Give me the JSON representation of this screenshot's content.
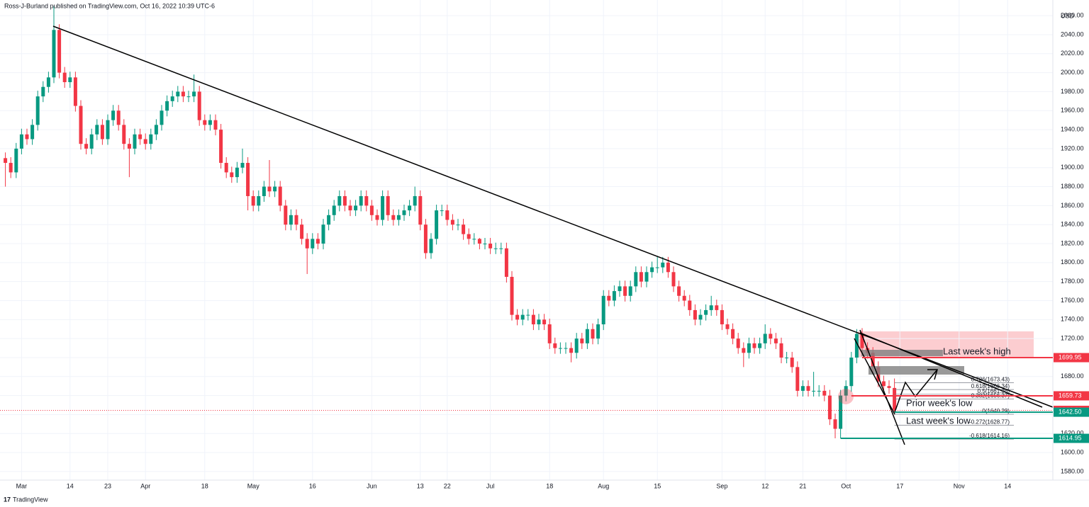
{
  "header": "Ross-J-Burland published on TradingView.com, Oct 16, 2022 10:39 UTC-6",
  "footer": "TradingView",
  "chart_data": {
    "type": "candlestick",
    "currency": "USD",
    "up_color": "#089981",
    "down_color": "#f23645",
    "open": [
      1910,
      1905,
      1895,
      1920,
      1935,
      1930,
      1945,
      1975,
      1985,
      1995,
      2045,
      2000,
      1990,
      1995,
      1965,
      1925,
      1920,
      1935,
      1945,
      1930,
      1950,
      1960,
      1945,
      1925,
      1920,
      1935,
      1930,
      1925,
      1935,
      1945,
      1960,
      1970,
      1975,
      1980,
      1975,
      1975,
      1980,
      1950,
      1945,
      1950,
      1940,
      1905,
      1895,
      1890,
      1900,
      1905,
      1870,
      1860,
      1870,
      1880,
      1875,
      1880,
      1860,
      1840,
      1850,
      1840,
      1825,
      1815,
      1825,
      1820,
      1840,
      1850,
      1860,
      1870,
      1860,
      1855,
      1860,
      1870,
      1860,
      1850,
      1845,
      1870,
      1850,
      1845,
      1850,
      1855,
      1860,
      1870,
      1840,
      1810,
      1825,
      1855,
      1855,
      1845,
      1840,
      1840,
      1830,
      1825,
      1825,
      1820,
      1820,
      1815,
      1815,
      1815,
      1785,
      1745,
      1740,
      1745,
      1745,
      1735,
      1740,
      1735,
      1715,
      1710,
      1710,
      1710,
      1705,
      1720,
      1715,
      1730,
      1720,
      1735,
      1765,
      1760,
      1770,
      1775,
      1765,
      1775,
      1790,
      1780,
      1790,
      1795,
      1795,
      1800,
      1790,
      1775,
      1765,
      1760,
      1750,
      1740,
      1745,
      1750,
      1755,
      1750,
      1735,
      1730,
      1720,
      1710,
      1705,
      1715,
      1710,
      1715,
      1725,
      1720,
      1715,
      1700,
      1700,
      1690,
      1665,
      1670,
      1665,
      1665,
      1665,
      1660,
      1635,
      1625,
      1660,
      1670,
      1700,
      1725,
      1710,
      1705,
      1690,
      1675,
      1670,
      1668
    ],
    "high": [
      1916,
      1911,
      1926,
      1941,
      1941,
      1951,
      1981,
      1991,
      2001,
      2070,
      2051,
      2006,
      2001,
      2001,
      1971,
      1931,
      1941,
      1951,
      1951,
      1956,
      1966,
      1966,
      1951,
      1931,
      1941,
      1941,
      1936,
      1941,
      1951,
      1966,
      1976,
      1981,
      1986,
      1986,
      1981,
      1998,
      1986,
      1956,
      1956,
      1956,
      1946,
      1911,
      1901,
      1906,
      1920,
      1911,
      1876,
      1876,
      1886,
      1908,
      1886,
      1886,
      1866,
      1856,
      1856,
      1846,
      1831,
      1831,
      1831,
      1846,
      1856,
      1866,
      1876,
      1876,
      1866,
      1866,
      1876,
      1876,
      1866,
      1856,
      1876,
      1876,
      1856,
      1856,
      1861,
      1866,
      1880,
      1876,
      1846,
      1831,
      1861,
      1861,
      1861,
      1851,
      1846,
      1846,
      1836,
      1831,
      1826,
      1826,
      1826,
      1821,
      1821,
      1821,
      1791,
      1751,
      1751,
      1751,
      1751,
      1746,
      1746,
      1741,
      1721,
      1716,
      1716,
      1716,
      1726,
      1726,
      1736,
      1736,
      1741,
      1771,
      1771,
      1776,
      1781,
      1781,
      1781,
      1796,
      1796,
      1796,
      1801,
      1807,
      1806,
      1806,
      1796,
      1781,
      1771,
      1766,
      1756,
      1751,
      1756,
      1765,
      1761,
      1756,
      1741,
      1736,
      1726,
      1716,
      1721,
      1721,
      1721,
      1735,
      1731,
      1726,
      1721,
      1706,
      1706,
      1696,
      1676,
      1676,
      1685,
      1671,
      1671,
      1666,
      1641,
      1666,
      1676,
      1706,
      1730,
      1731,
      1716,
      1711,
      1696,
      1681,
      1676,
      1678
    ],
    "low": [
      1880,
      1889,
      1889,
      1914,
      1924,
      1924,
      1939,
      1969,
      1979,
      1989,
      1994,
      1984,
      1984,
      1959,
      1919,
      1914,
      1914,
      1929,
      1924,
      1924,
      1944,
      1939,
      1919,
      1890,
      1914,
      1924,
      1919,
      1919,
      1929,
      1939,
      1954,
      1964,
      1969,
      1969,
      1969,
      1969,
      1944,
      1939,
      1939,
      1934,
      1899,
      1889,
      1884,
      1884,
      1894,
      1855,
      1854,
      1854,
      1864,
      1869,
      1869,
      1854,
      1834,
      1834,
      1834,
      1819,
      1788,
      1809,
      1814,
      1814,
      1834,
      1844,
      1854,
      1854,
      1849,
      1849,
      1854,
      1854,
      1844,
      1839,
      1839,
      1844,
      1839,
      1839,
      1844,
      1849,
      1854,
      1834,
      1804,
      1804,
      1819,
      1849,
      1839,
      1834,
      1834,
      1824,
      1819,
      1819,
      1814,
      1814,
      1809,
      1809,
      1809,
      1779,
      1739,
      1734,
      1734,
      1739,
      1729,
      1729,
      1729,
      1709,
      1704,
      1704,
      1704,
      1695,
      1699,
      1709,
      1709,
      1714,
      1714,
      1729,
      1754,
      1754,
      1764,
      1759,
      1759,
      1769,
      1774,
      1774,
      1784,
      1789,
      1789,
      1784,
      1769,
      1759,
      1754,
      1744,
      1734,
      1734,
      1739,
      1744,
      1744,
      1729,
      1724,
      1714,
      1704,
      1690,
      1699,
      1704,
      1704,
      1709,
      1714,
      1709,
      1694,
      1694,
      1684,
      1659,
      1659,
      1659,
      1659,
      1659,
      1654,
      1629,
      1615,
      1615,
      1654,
      1664,
      1694,
      1704,
      1699,
      1684,
      1669,
      1664,
      1662,
      1640
    ],
    "close": [
      1905,
      1895,
      1920,
      1935,
      1930,
      1945,
      1975,
      1985,
      1995,
      2045,
      2000,
      1990,
      1995,
      1965,
      1925,
      1920,
      1935,
      1945,
      1930,
      1950,
      1960,
      1945,
      1925,
      1920,
      1935,
      1930,
      1925,
      1935,
      1945,
      1960,
      1970,
      1975,
      1980,
      1975,
      1975,
      1980,
      1950,
      1945,
      1950,
      1940,
      1905,
      1895,
      1890,
      1900,
      1905,
      1870,
      1860,
      1870,
      1880,
      1875,
      1880,
      1860,
      1840,
      1850,
      1840,
      1825,
      1815,
      1825,
      1820,
      1840,
      1850,
      1860,
      1870,
      1860,
      1855,
      1860,
      1870,
      1860,
      1850,
      1845,
      1870,
      1850,
      1845,
      1850,
      1855,
      1860,
      1870,
      1840,
      1810,
      1825,
      1855,
      1855,
      1845,
      1840,
      1840,
      1830,
      1825,
      1825,
      1820,
      1820,
      1815,
      1815,
      1815,
      1785,
      1745,
      1740,
      1745,
      1745,
      1735,
      1740,
      1735,
      1715,
      1710,
      1710,
      1710,
      1705,
      1720,
      1715,
      1730,
      1720,
      1735,
      1765,
      1760,
      1770,
      1775,
      1765,
      1775,
      1790,
      1780,
      1790,
      1795,
      1795,
      1800,
      1790,
      1775,
      1765,
      1760,
      1750,
      1740,
      1745,
      1750,
      1755,
      1750,
      1735,
      1730,
      1720,
      1710,
      1705,
      1715,
      1710,
      1715,
      1725,
      1720,
      1715,
      1700,
      1700,
      1690,
      1665,
      1670,
      1665,
      1665,
      1665,
      1660,
      1635,
      1625,
      1660,
      1670,
      1700,
      1725,
      1710,
      1705,
      1690,
      1675,
      1670,
      1668,
      1645
    ],
    "xlim": [
      -1,
      194
    ],
    "ylim": [
      1571,
      2076.5
    ],
    "xticks": [
      {
        "value": 3,
        "label": "Mar"
      },
      {
        "value": 12,
        "label": "14"
      },
      {
        "value": 19,
        "label": "23"
      },
      {
        "value": 26,
        "label": "Apr"
      },
      {
        "value": 37,
        "label": "18"
      },
      {
        "value": 46,
        "label": "May"
      },
      {
        "value": 57,
        "label": "16"
      },
      {
        "value": 68,
        "label": "Jun"
      },
      {
        "value": 77,
        "label": "13"
      },
      {
        "value": 82,
        "label": "22"
      },
      {
        "value": 90,
        "label": "Jul"
      },
      {
        "value": 101,
        "label": "18"
      },
      {
        "value": 111,
        "label": "Aug"
      },
      {
        "value": 121,
        "label": "15"
      },
      {
        "value": 133,
        "label": "Sep"
      },
      {
        "value": 141,
        "label": "12"
      },
      {
        "value": 148,
        "label": "21"
      },
      {
        "value": 156,
        "label": "Oct"
      },
      {
        "value": 166,
        "label": "17"
      },
      {
        "value": 177,
        "label": "Nov"
      },
      {
        "value": 186,
        "label": "14"
      }
    ],
    "yticks": [
      {
        "value": 1580,
        "label": "1580.00"
      },
      {
        "value": 1600,
        "label": "1600.00"
      },
      {
        "value": 1620,
        "label": "1620.00"
      },
      {
        "value": 1640,
        "label": "1640.00"
      },
      {
        "value": 1660,
        "label": "1660.00"
      },
      {
        "value": 1680,
        "label": "1680.00"
      },
      {
        "value": 1700,
        "label": "1700.00"
      },
      {
        "value": 1720,
        "label": "1720.00"
      },
      {
        "value": 1740,
        "label": "1740.00"
      },
      {
        "value": 1760,
        "label": "1760.00"
      },
      {
        "value": 1780,
        "label": "1780.00"
      },
      {
        "value": 1800,
        "label": "1800.00"
      },
      {
        "value": 1820,
        "label": "1820.00"
      },
      {
        "value": 1840,
        "label": "1840.00"
      },
      {
        "value": 1860,
        "label": "1860.00"
      },
      {
        "value": 1880,
        "label": "1880.00"
      },
      {
        "value": 1900,
        "label": "1900.00"
      },
      {
        "value": 1920,
        "label": "1920.00"
      },
      {
        "value": 1940,
        "label": "1940.00"
      },
      {
        "value": 1960,
        "label": "1960.00"
      },
      {
        "value": 1980,
        "label": "1980.00"
      },
      {
        "value": 2000,
        "label": "2000.00"
      },
      {
        "value": 2020,
        "label": "2020.00"
      },
      {
        "value": 2040,
        "label": "2040.00"
      },
      {
        "value": 2060,
        "label": "2060.00"
      }
    ],
    "price_lines": [
      {
        "value": 1699.95,
        "label": "1699.95",
        "color": "#f23645",
        "from": 159
      },
      {
        "value": 1659.73,
        "label": "1659.73",
        "color": "#f23645",
        "from": 157
      },
      {
        "value": 1644.44,
        "label": "1644.44",
        "color": "#f23645",
        "from": -1,
        "dotted": true
      },
      {
        "value": 1642.5,
        "label": "1642.50",
        "color": "#089981",
        "from": 165
      },
      {
        "value": 1614.95,
        "label": "1614.95",
        "color": "#089981",
        "from": 155
      }
    ],
    "fib_levels": [
      {
        "value": 1673.43,
        "label": "0.786(1673.43)"
      },
      {
        "value": 1666.34,
        "label": "0.618(1666.34)"
      },
      {
        "value": 1661.36,
        "label": "0.5(1661.36)"
      },
      {
        "value": 1656.37,
        "label": "0.382(1656.37)"
      },
      {
        "value": 1640.29,
        "label": "0(1640.29)"
      },
      {
        "value": 1628.77,
        "label": "-0.272(1628.77)"
      },
      {
        "value": 1614.16,
        "label": "-0.618(1614.16)"
      }
    ],
    "annotations": [
      "Last week's high",
      "Prior week's low",
      "Last week's low"
    ]
  }
}
